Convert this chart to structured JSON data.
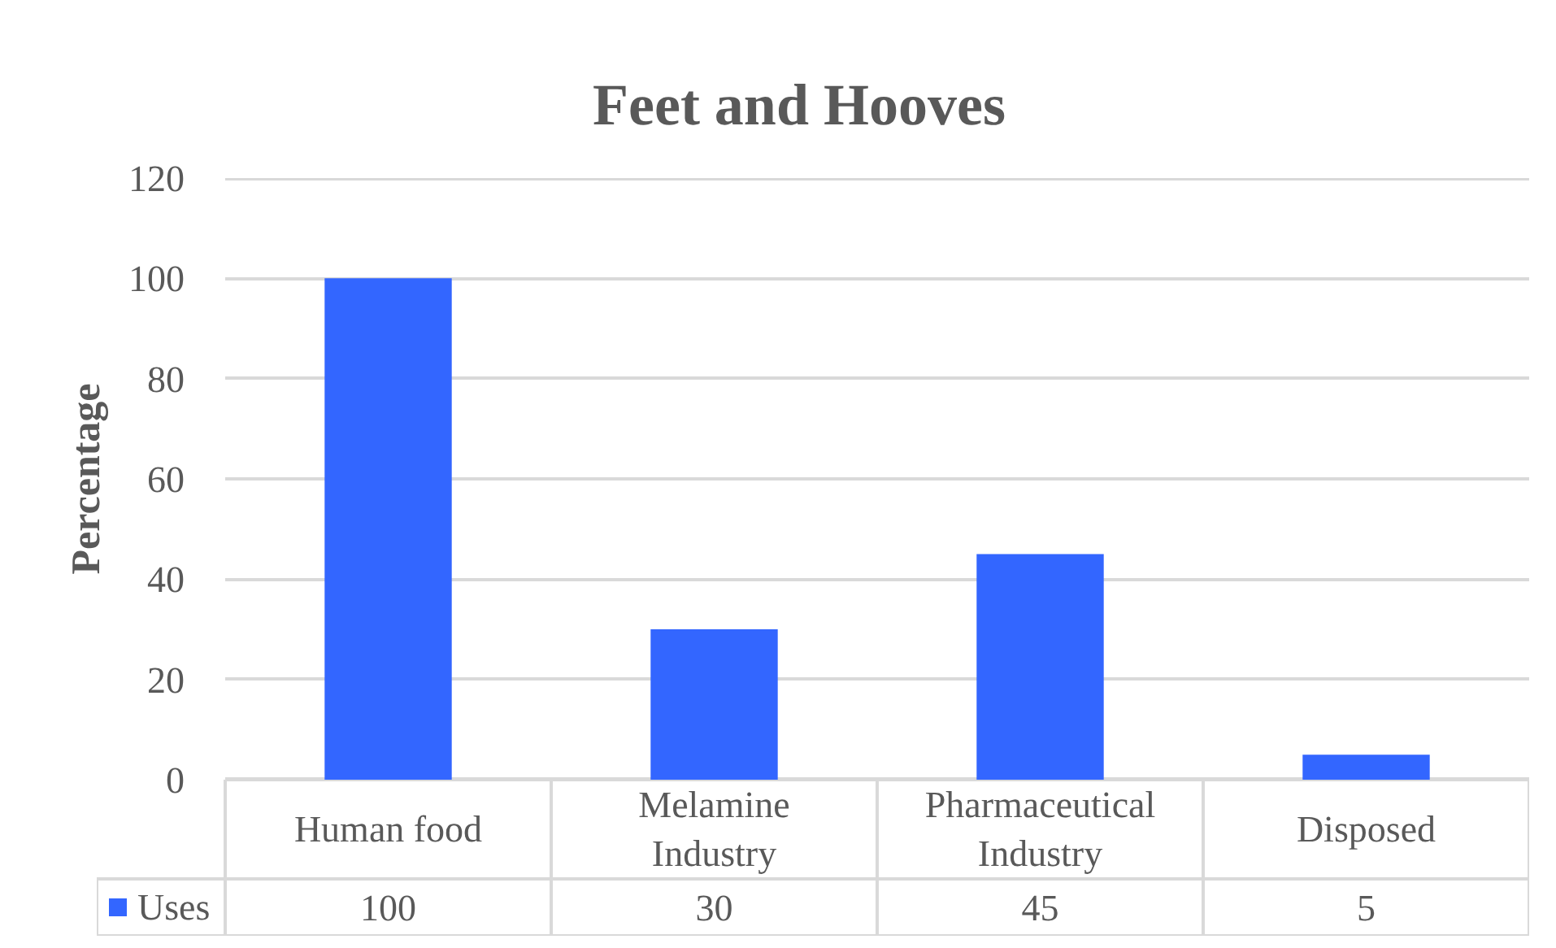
{
  "chart_data": {
    "type": "bar",
    "title": "Feet and Hooves",
    "ylabel": "Percentage",
    "categories": [
      "Human food",
      "Melamine Industry",
      "Pharmaceutical Industry",
      "Disposed"
    ],
    "series": [
      {
        "name": "Uses",
        "color": "#3366ff",
        "values": [
          100,
          30,
          45,
          5
        ]
      }
    ],
    "ylim": [
      0,
      120
    ],
    "yticks": [
      0,
      20,
      40,
      60,
      80,
      100,
      120
    ],
    "grid": "y",
    "legend": "bottom",
    "data_labels": true
  }
}
